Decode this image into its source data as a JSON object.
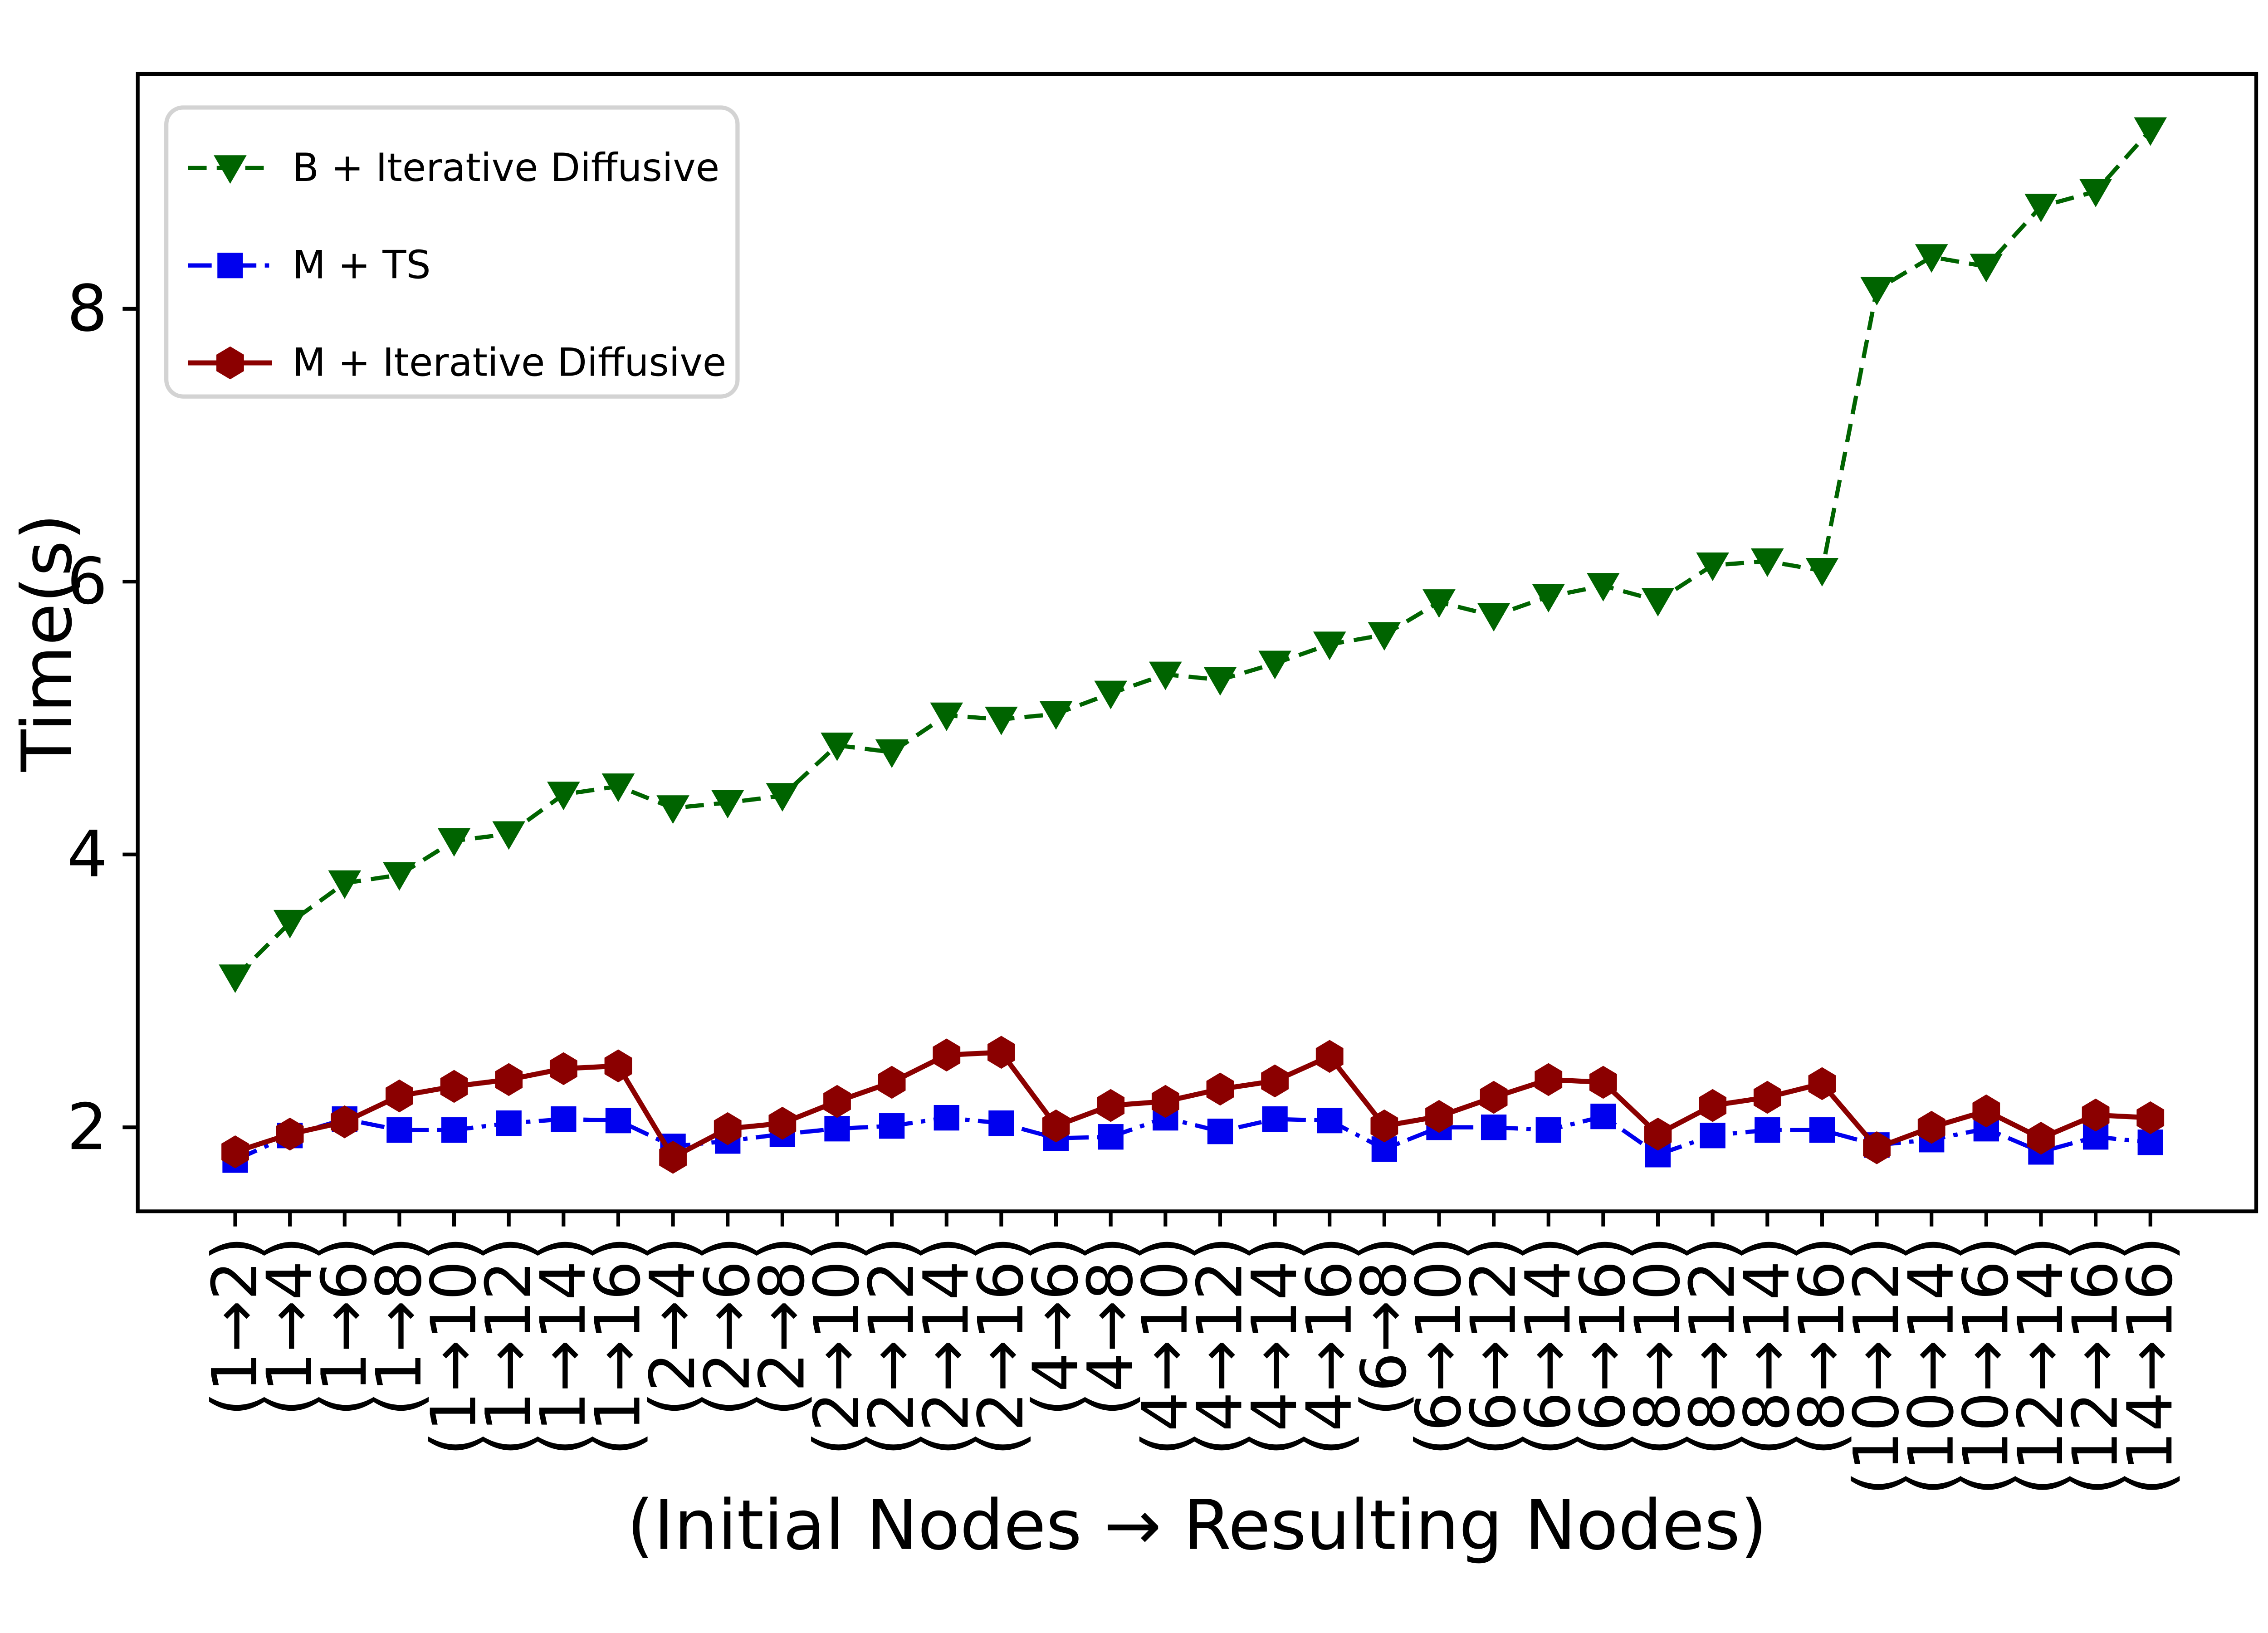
{
  "figure": {
    "background": "#ffffff",
    "axes_color": "#000000"
  },
  "chart_data": {
    "type": "line",
    "title": "",
    "xlabel": "(Initial Nodes → Resulting Nodes)",
    "ylabel": "Time(s)",
    "x_tick_rotation": 90,
    "ylim": [
      1.4,
      9.75
    ],
    "yticks": [
      2,
      4,
      6,
      8
    ],
    "grid": false,
    "legend": {
      "position": "upper-left",
      "border_color": "#d3d3d3",
      "background": "#ffffff"
    },
    "categories": [
      "(1→2)",
      "(1→4)",
      "(1→6)",
      "(1→8)",
      "(1→10)",
      "(1→12)",
      "(1→14)",
      "(1→16)",
      "(2→4)",
      "(2→6)",
      "(2→8)",
      "(2→10)",
      "(2→12)",
      "(2→14)",
      "(2→16)",
      "(4→6)",
      "(4→8)",
      "(4→10)",
      "(4→12)",
      "(4→14)",
      "(4→16)",
      "(6→8)",
      "(6→10)",
      "(6→12)",
      "(6→14)",
      "(6→16)",
      "(8→10)",
      "(8→12)",
      "(8→14)",
      "(8→16)",
      "(10→12)",
      "(10→14)",
      "(10→16)",
      "(12→14)",
      "(12→16)",
      "(14→16)"
    ],
    "series": [
      {
        "name": "B + Iterative Diffusive",
        "color": "#006400",
        "linestyle": "dashed",
        "marker": "triangle-down",
        "values": [
          3.1,
          3.5,
          3.79,
          3.85,
          4.1,
          4.15,
          4.44,
          4.5,
          4.34,
          4.38,
          4.43,
          4.8,
          4.75,
          5.02,
          4.99,
          5.03,
          5.18,
          5.32,
          5.28,
          5.4,
          5.54,
          5.61,
          5.85,
          5.75,
          5.89,
          5.97,
          5.86,
          6.12,
          6.15,
          6.08,
          8.14,
          8.38,
          8.31,
          8.75,
          8.86,
          9.31
        ]
      },
      {
        "name": "M + TS",
        "color": "#0000ee",
        "linestyle": "dashdot",
        "marker": "square",
        "values": [
          1.76,
          1.94,
          2.06,
          1.98,
          1.98,
          2.03,
          2.06,
          2.05,
          1.86,
          1.9,
          1.95,
          1.99,
          2.01,
          2.07,
          2.03,
          1.92,
          1.93,
          2.07,
          1.97,
          2.06,
          2.05,
          1.84,
          2.0,
          2.0,
          1.98,
          2.08,
          1.8,
          1.94,
          1.98,
          1.98,
          1.87,
          1.91,
          1.99,
          1.82,
          1.93,
          1.89
        ]
      },
      {
        "name": "M + Iterative Diffusive",
        "color": "#8b0000",
        "linestyle": "solid",
        "marker": "hexagon",
        "values": [
          1.82,
          1.95,
          2.04,
          2.23,
          2.3,
          2.35,
          2.43,
          2.45,
          1.78,
          1.99,
          2.03,
          2.19,
          2.33,
          2.53,
          2.55,
          2.01,
          2.16,
          2.19,
          2.28,
          2.34,
          2.52,
          2.01,
          2.08,
          2.22,
          2.35,
          2.33,
          1.95,
          2.16,
          2.22,
          2.32,
          1.85,
          2.0,
          2.12,
          1.92,
          2.09,
          2.07
        ]
      }
    ]
  }
}
